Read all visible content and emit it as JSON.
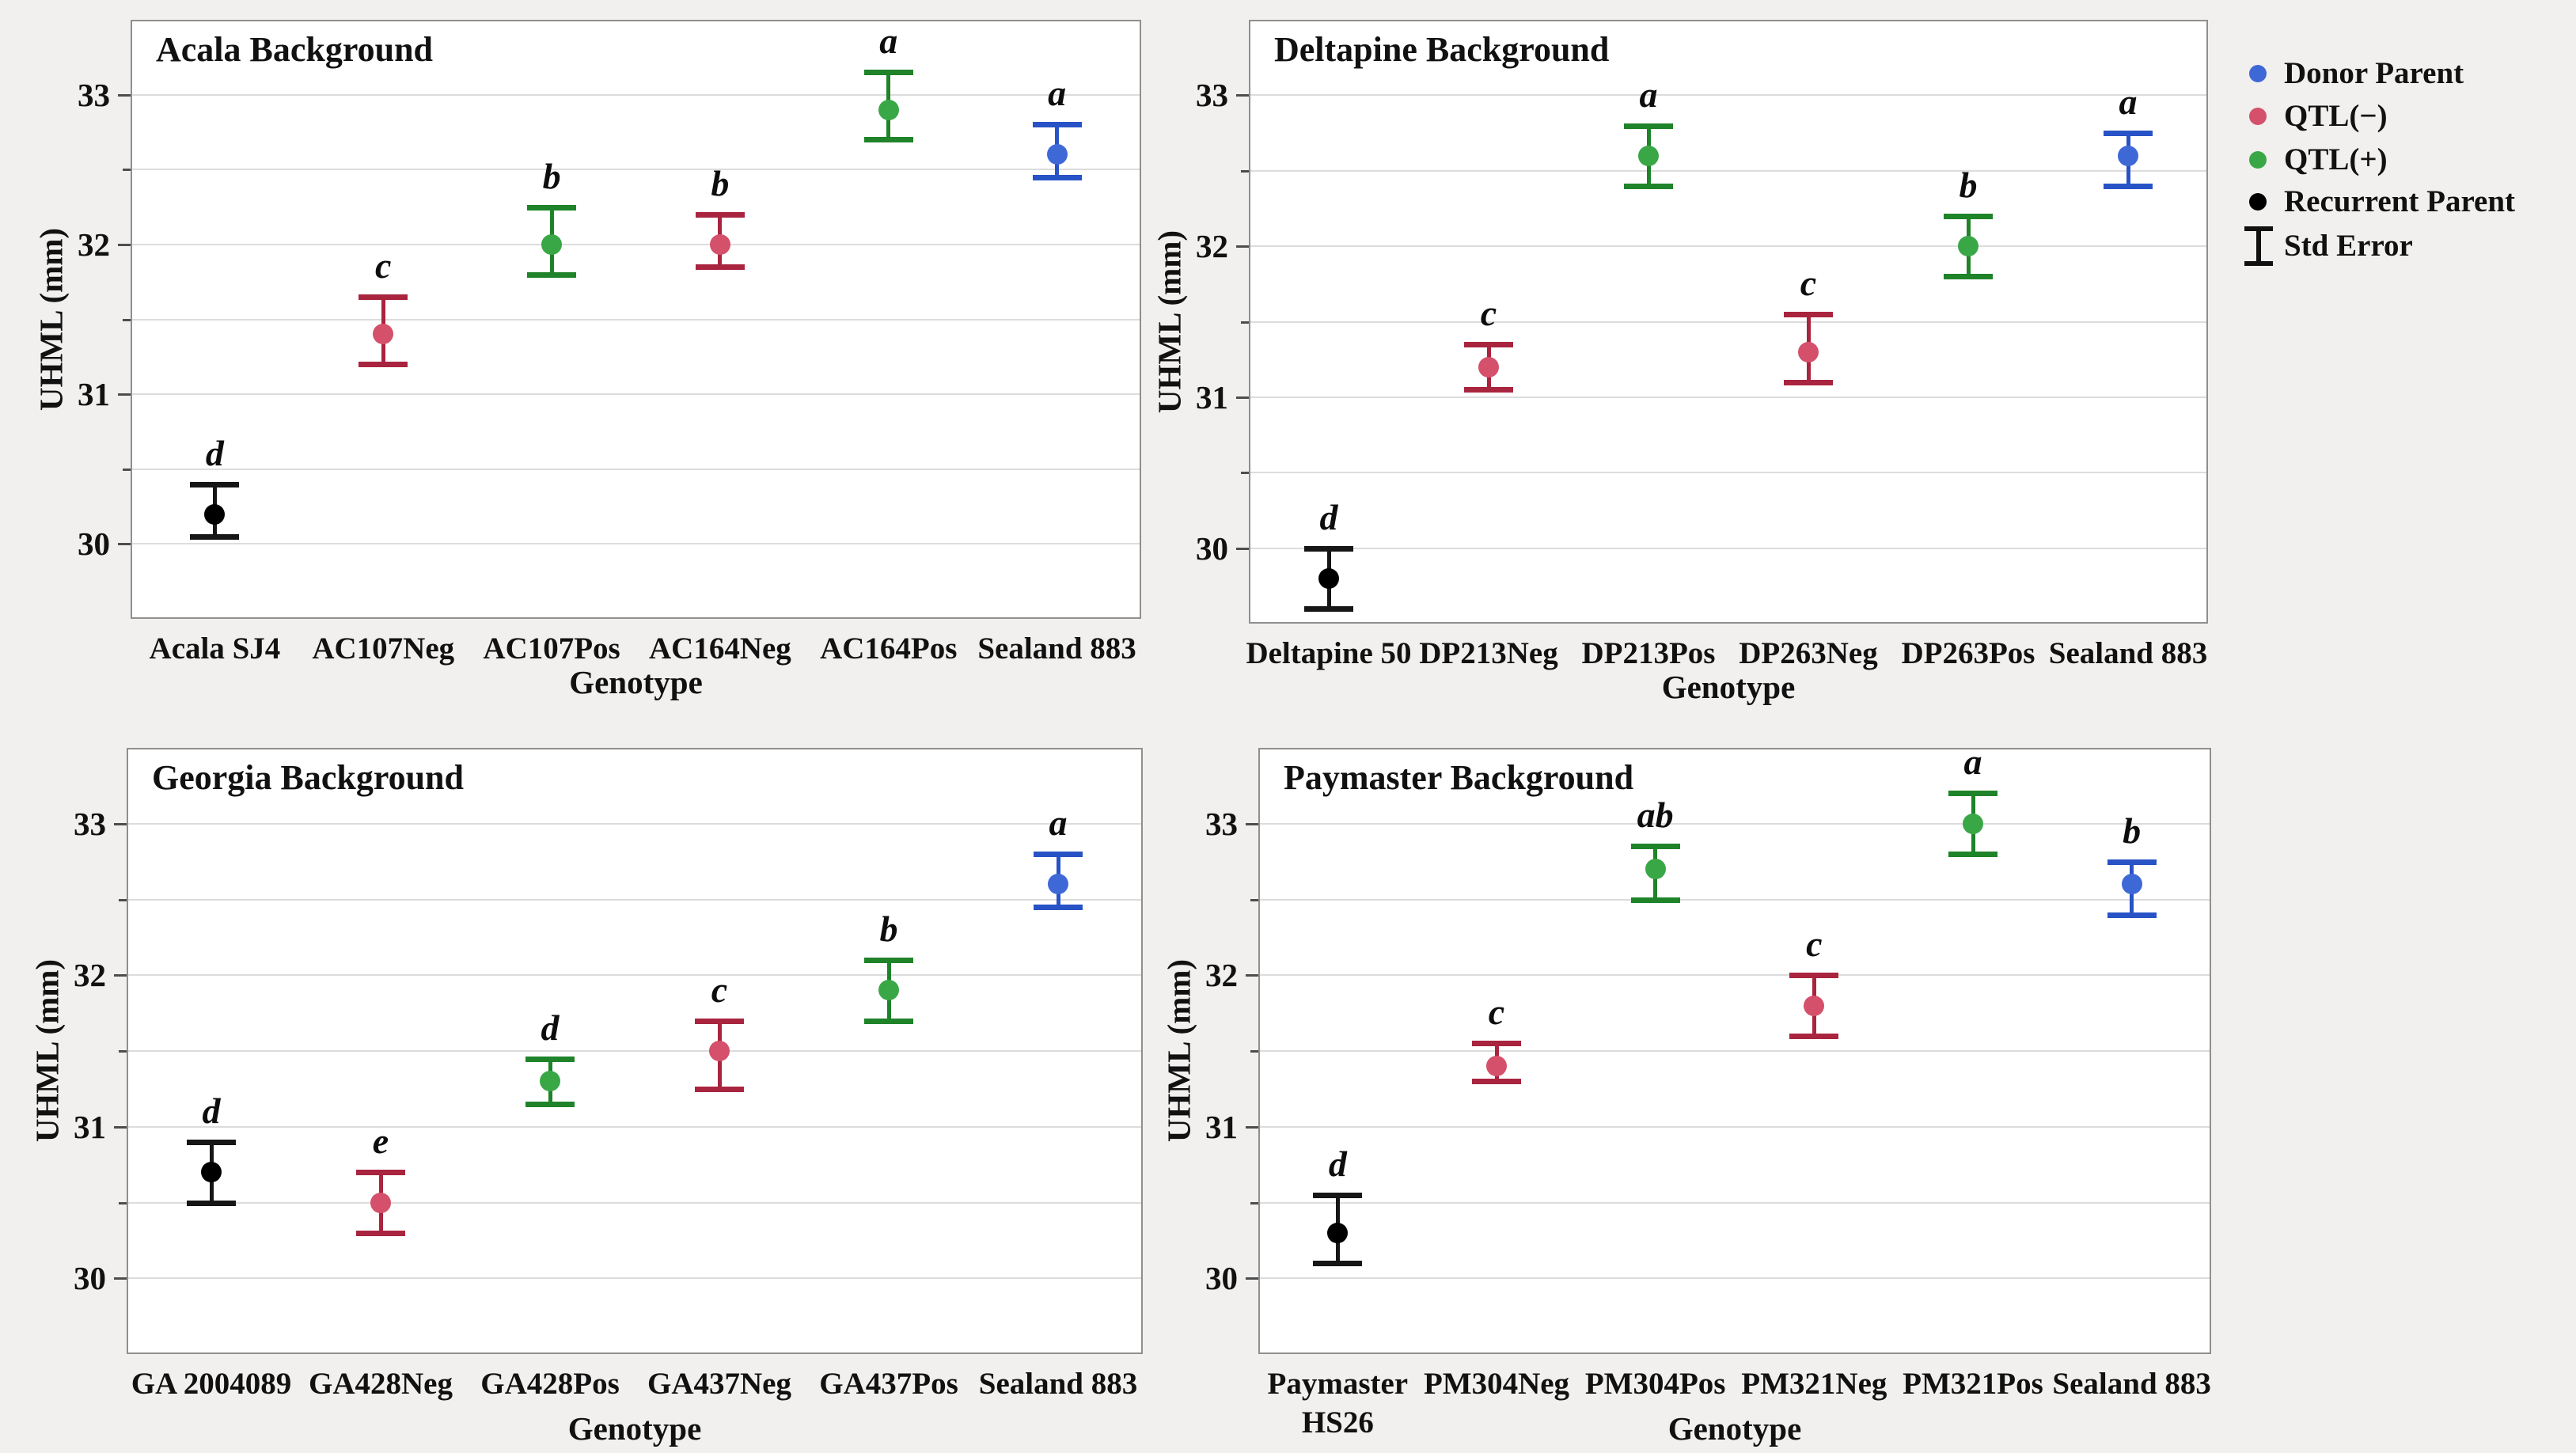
{
  "figure": {
    "y_axis_label": "UHML (mm)",
    "x_axis_label": "Genotype",
    "colors": {
      "background": "#f1f0ee",
      "panel_bg": "#ffffff",
      "panel_border": "#8f8f8f",
      "gridline": "#dcdcdc",
      "text": "#111111",
      "groups": {
        "donor": {
          "line": "#2853c6",
          "dot": "#3f68d7"
        },
        "qtl_neg": {
          "line": "#a9243f",
          "dot": "#d5506a"
        },
        "qtl_pos": {
          "line": "#1f8329",
          "dot": "#3aa747"
        },
        "recurrent": {
          "line": "#161616",
          "dot": "#000000"
        }
      }
    }
  },
  "legend": {
    "items": [
      {
        "label": "Donor Parent",
        "group": "donor",
        "marker": "dot"
      },
      {
        "label": "QTL(−)",
        "group": "qtl_neg",
        "marker": "dot"
      },
      {
        "label": "QTL(+)",
        "group": "qtl_pos",
        "marker": "dot"
      },
      {
        "label": "Recurrent Parent",
        "group": "recurrent",
        "marker": "dot"
      },
      {
        "label": "Std Error",
        "group": "recurrent",
        "marker": "errorbar"
      }
    ]
  },
  "chart_data": [
    {
      "type": "scatter",
      "title": "Acala Background",
      "xlabel": "Genotype",
      "ylabel": "UHML (mm)",
      "ylim": [
        29.5,
        33.5
      ],
      "yticks": [
        30,
        31,
        32,
        33
      ],
      "grid": true,
      "categories": [
        "Acala SJ4",
        "AC107Neg",
        "AC107Pos",
        "AC164Neg",
        "AC164Pos",
        "Sealand 883"
      ],
      "points": [
        {
          "genotype": "Acala SJ4",
          "group": "recurrent",
          "value": 30.2,
          "err_low": 30.05,
          "err_high": 30.4,
          "letter": "d"
        },
        {
          "genotype": "AC107Neg",
          "group": "qtl_neg",
          "value": 31.4,
          "err_low": 31.2,
          "err_high": 31.65,
          "letter": "c"
        },
        {
          "genotype": "AC107Pos",
          "group": "qtl_pos",
          "value": 32.0,
          "err_low": 31.8,
          "err_high": 32.25,
          "letter": "b"
        },
        {
          "genotype": "AC164Neg",
          "group": "qtl_neg",
          "value": 32.0,
          "err_low": 31.85,
          "err_high": 32.2,
          "letter": "b"
        },
        {
          "genotype": "AC164Pos",
          "group": "qtl_pos",
          "value": 32.9,
          "err_low": 32.7,
          "err_high": 33.15,
          "letter": "a"
        },
        {
          "genotype": "Sealand 883",
          "group": "donor",
          "value": 32.6,
          "err_low": 32.45,
          "err_high": 32.8,
          "letter": "a"
        }
      ]
    },
    {
      "type": "scatter",
      "title": "Deltapine Background",
      "xlabel": "Genotype",
      "ylabel": "UHML (mm)",
      "ylim": [
        29.5,
        33.5
      ],
      "yticks": [
        30,
        31,
        32,
        33
      ],
      "grid": true,
      "categories": [
        "Deltapine 50",
        "DP213Neg",
        "DP213Pos",
        "DP263Neg",
        "DP263Pos",
        "Sealand 883"
      ],
      "points": [
        {
          "genotype": "Deltapine 50",
          "group": "recurrent",
          "value": 29.8,
          "err_low": 29.6,
          "err_high": 30.0,
          "letter": "d"
        },
        {
          "genotype": "DP213Neg",
          "group": "qtl_neg",
          "value": 31.2,
          "err_low": 31.05,
          "err_high": 31.35,
          "letter": "c"
        },
        {
          "genotype": "DP213Pos",
          "group": "qtl_pos",
          "value": 32.6,
          "err_low": 32.4,
          "err_high": 32.8,
          "letter": "a"
        },
        {
          "genotype": "DP263Neg",
          "group": "qtl_neg",
          "value": 31.3,
          "err_low": 31.1,
          "err_high": 31.55,
          "letter": "c"
        },
        {
          "genotype": "DP263Pos",
          "group": "qtl_pos",
          "value": 32.0,
          "err_low": 31.8,
          "err_high": 32.2,
          "letter": "b"
        },
        {
          "genotype": "Sealand 883",
          "group": "donor",
          "value": 32.6,
          "err_low": 32.4,
          "err_high": 32.75,
          "letter": "a"
        }
      ]
    },
    {
      "type": "scatter",
      "title": "Georgia Background",
      "xlabel": "Genotype",
      "ylabel": "UHML (mm)",
      "ylim": [
        29.5,
        33.5
      ],
      "yticks": [
        30,
        31,
        32,
        33
      ],
      "grid": true,
      "categories": [
        "GA 2004089",
        "GA428Neg",
        "GA428Pos",
        "GA437Neg",
        "GA437Pos",
        "Sealand 883"
      ],
      "points": [
        {
          "genotype": "GA 2004089",
          "group": "recurrent",
          "value": 30.7,
          "err_low": 30.5,
          "err_high": 30.9,
          "letter": "d"
        },
        {
          "genotype": "GA428Neg",
          "group": "qtl_neg",
          "value": 30.5,
          "err_low": 30.3,
          "err_high": 30.7,
          "letter": "e"
        },
        {
          "genotype": "GA428Pos",
          "group": "qtl_pos",
          "value": 31.3,
          "err_low": 31.15,
          "err_high": 31.45,
          "letter": "d"
        },
        {
          "genotype": "GA437Neg",
          "group": "qtl_neg",
          "value": 31.5,
          "err_low": 31.25,
          "err_high": 31.7,
          "letter": "c"
        },
        {
          "genotype": "GA437Pos",
          "group": "qtl_pos",
          "value": 31.9,
          "err_low": 31.7,
          "err_high": 32.1,
          "letter": "b"
        },
        {
          "genotype": "Sealand 883",
          "group": "donor",
          "value": 32.6,
          "err_low": 32.45,
          "err_high": 32.8,
          "letter": "a"
        }
      ]
    },
    {
      "type": "scatter",
      "title": "Paymaster Background",
      "xlabel": "Genotype",
      "ylabel": "UHML (mm)",
      "ylim": [
        29.5,
        33.5
      ],
      "yticks": [
        30,
        31,
        32,
        33
      ],
      "grid": true,
      "categories": [
        "Paymaster\nHS26",
        "PM304Neg",
        "PM304Pos",
        "PM321Neg",
        "PM321Pos",
        "Sealand 883"
      ],
      "points": [
        {
          "genotype": "Paymaster HS26",
          "group": "recurrent",
          "value": 30.3,
          "err_low": 30.1,
          "err_high": 30.55,
          "letter": "d"
        },
        {
          "genotype": "PM304Neg",
          "group": "qtl_neg",
          "value": 31.4,
          "err_low": 31.3,
          "err_high": 31.55,
          "letter": "c"
        },
        {
          "genotype": "PM304Pos",
          "group": "qtl_pos",
          "value": 32.7,
          "err_low": 32.5,
          "err_high": 32.85,
          "letter": "ab"
        },
        {
          "genotype": "PM321Neg",
          "group": "qtl_neg",
          "value": 31.8,
          "err_low": 31.6,
          "err_high": 32.0,
          "letter": "c"
        },
        {
          "genotype": "PM321Pos",
          "group": "qtl_pos",
          "value": 33.0,
          "err_low": 32.8,
          "err_high": 33.2,
          "letter": "a"
        },
        {
          "genotype": "Sealand 883",
          "group": "donor",
          "value": 32.6,
          "err_low": 32.4,
          "err_high": 32.75,
          "letter": "b"
        }
      ]
    }
  ]
}
